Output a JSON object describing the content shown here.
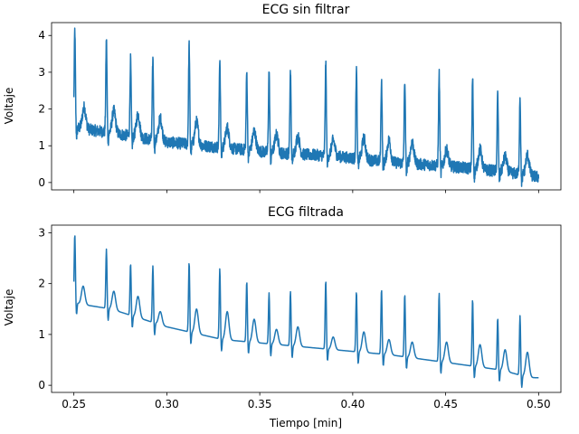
{
  "chart_data": [
    {
      "type": "line",
      "title": "ECG sin filtrar",
      "xlabel": "",
      "ylabel": "Voltaje",
      "xlim": [
        0.238,
        0.512
      ],
      "ylim": [
        -0.2,
        4.35
      ],
      "xticks": [
        0.25,
        0.3,
        0.35,
        0.4,
        0.45,
        0.5
      ],
      "xtick_labels": [],
      "yticks": [
        0,
        1,
        2,
        3,
        4
      ],
      "ytick_labels": [
        "0",
        "1",
        "2",
        "3",
        "4"
      ],
      "color": "#1f77b4",
      "noise": "high",
      "baseline": {
        "x": [
          0.25,
          0.27,
          0.3,
          0.33,
          0.36,
          0.39,
          0.42,
          0.45,
          0.48,
          0.5
        ],
        "y": [
          1.5,
          1.35,
          1.1,
          0.95,
          0.8,
          0.72,
          0.55,
          0.45,
          0.3,
          0.15
        ]
      },
      "r_peaks": {
        "x": [
          0.2505,
          0.2675,
          0.2805,
          0.2925,
          0.312,
          0.3285,
          0.343,
          0.355,
          0.3665,
          0.3855,
          0.402,
          0.4155,
          0.428,
          0.4465,
          0.4645,
          0.478,
          0.49
        ],
        "y": [
          4.15,
          3.9,
          3.35,
          3.38,
          3.75,
          3.38,
          3.0,
          3.03,
          3.02,
          3.22,
          3.1,
          2.8,
          2.8,
          2.95,
          2.85,
          2.4,
          2.35
        ]
      },
      "t_waves": {
        "x": [
          0.2555,
          0.2715,
          0.2845,
          0.2965,
          0.316,
          0.3325,
          0.347,
          0.359,
          0.3705,
          0.3895,
          0.406,
          0.4195,
          0.432,
          0.4505,
          0.4685,
          0.482,
          0.494
        ],
        "y": [
          2.05,
          1.95,
          1.85,
          1.75,
          1.65,
          1.5,
          1.4,
          1.3,
          1.25,
          1.15,
          1.2,
          1.15,
          1.1,
          0.9,
          0.9,
          0.7,
          0.75
        ]
      }
    },
    {
      "type": "line",
      "title": "ECG filtrada",
      "xlabel": "Tiempo [min]",
      "ylabel": "Voltaje",
      "xlim": [
        0.238,
        0.512
      ],
      "ylim": [
        -0.14,
        3.15
      ],
      "xticks": [
        0.25,
        0.3,
        0.35,
        0.4,
        0.45,
        0.5
      ],
      "xtick_labels": [
        "0.25",
        "0.30",
        "0.35",
        "0.40",
        "0.45",
        "0.50"
      ],
      "yticks": [
        0,
        1,
        2,
        3
      ],
      "ytick_labels": [
        "0",
        "1",
        "2",
        "3"
      ],
      "color": "#1f77b4",
      "noise": "none",
      "baseline": {
        "x": [
          0.25,
          0.253,
          0.27,
          0.3,
          0.33,
          0.36,
          0.39,
          0.42,
          0.45,
          0.48,
          0.495,
          0.5
        ],
        "y": [
          1.65,
          1.6,
          1.5,
          1.15,
          0.9,
          0.8,
          0.7,
          0.6,
          0.45,
          0.3,
          0.15,
          0.15
        ]
      },
      "r_peaks": {
        "x": [
          0.2505,
          0.2675,
          0.2805,
          0.2925,
          0.312,
          0.3285,
          0.343,
          0.355,
          0.3665,
          0.3855,
          0.402,
          0.4155,
          0.428,
          0.4465,
          0.4645,
          0.478,
          0.49
        ],
        "y": [
          2.98,
          2.68,
          2.4,
          2.35,
          2.43,
          2.3,
          2.05,
          1.82,
          1.85,
          2.07,
          1.85,
          1.9,
          1.8,
          1.82,
          1.7,
          1.33,
          1.37
        ]
      },
      "t_waves": {
        "x": [
          0.255,
          0.2715,
          0.2845,
          0.2965,
          0.316,
          0.3325,
          0.347,
          0.359,
          0.3705,
          0.3895,
          0.406,
          0.4195,
          0.432,
          0.4505,
          0.4685,
          0.482,
          0.494
        ],
        "y": [
          1.95,
          1.85,
          1.75,
          1.45,
          1.5,
          1.45,
          1.3,
          1.1,
          1.15,
          0.95,
          1.05,
          0.9,
          0.85,
          0.85,
          0.8,
          0.7,
          0.65
        ]
      }
    }
  ]
}
